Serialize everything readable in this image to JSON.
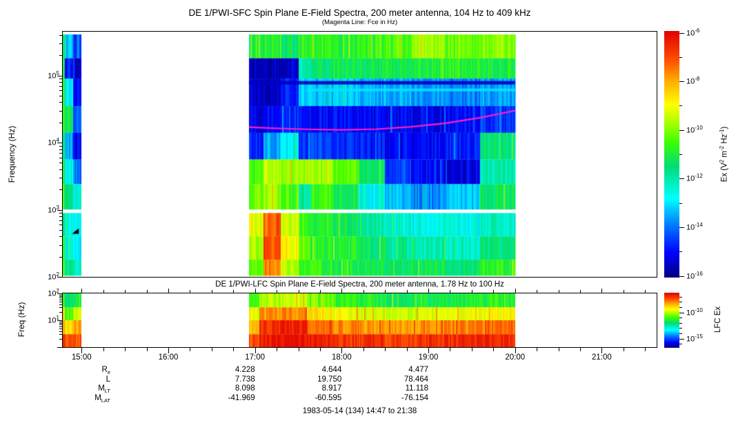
{
  "titles": {
    "sfc": "DE 1/PWI-SFC  Spin Plane E-Field Spectra, 200 meter antenna, 104 Hz to 409 kHz",
    "sfc_sub": "(Magenta Line: Fce in Hz)",
    "lfc": "DE 1/PWI-LFC  Spin Plane E-Field Spectra, 200 meter antenna, 1.78 Hz to 100 Hz"
  },
  "axes": {
    "x": {
      "start_hour": 14.783,
      "end_hour": 21.633,
      "major_ticks": [
        {
          "hour": 15,
          "label": "15:00"
        },
        {
          "hour": 16,
          "label": "16:00"
        },
        {
          "hour": 17,
          "label": "17:00"
        },
        {
          "hour": 18,
          "label": "18:00"
        },
        {
          "hour": 19,
          "label": "19:00"
        },
        {
          "hour": 20,
          "label": "20:00"
        },
        {
          "hour": 21,
          "label": "21:00"
        }
      ],
      "minor_step_hours": 0.25
    },
    "sfc_y": {
      "label": "Frequency (Hz)",
      "log_range_hz": [
        100,
        450000
      ],
      "major_ticks": [
        {
          "base": "10",
          "exp": "5",
          "hz": 100000
        },
        {
          "base": "10",
          "exp": "4",
          "hz": 10000
        },
        {
          "base": "10",
          "exp": "3",
          "hz": 1000
        },
        {
          "base": "10",
          "exp": "2",
          "hz": 100
        }
      ]
    },
    "lfc_y": {
      "label": "Freq (Hz)",
      "log_range_hz": [
        1,
        100
      ],
      "major_ticks": [
        {
          "base": "10",
          "exp": "2",
          "hz": 100
        },
        {
          "base": "10",
          "exp": "1",
          "hz": 10
        }
      ]
    }
  },
  "colorbars": {
    "sfc": {
      "label_parts": [
        {
          "t": "Ex (V"
        },
        {
          "s": "2"
        },
        {
          "t": " m"
        },
        {
          "s": "-2"
        },
        {
          "t": " Hz"
        },
        {
          "s": "-1"
        },
        {
          "t": ")"
        }
      ],
      "log_max": -6,
      "log_min": -16,
      "labeled_exps": [
        -6,
        -8,
        -10,
        -12,
        -14,
        -16
      ]
    },
    "lfc": {
      "label": "LFC Ex",
      "log_max": -6.5,
      "log_min": -16.5,
      "labeled_exps": [
        -10,
        -15
      ]
    }
  },
  "colors": {
    "fce_line": "#ff1ecc",
    "axis": "#000000",
    "background": "#ffffff",
    "colormap_stops": [
      [
        0.0,
        "#000082"
      ],
      [
        0.1,
        "#0000ff"
      ],
      [
        0.22,
        "#0082ff"
      ],
      [
        0.32,
        "#00ffff"
      ],
      [
        0.45,
        "#00dc78"
      ],
      [
        0.55,
        "#3cff00"
      ],
      [
        0.62,
        "#a0ff00"
      ],
      [
        0.7,
        "#ffff00"
      ],
      [
        0.8,
        "#ffaa00"
      ],
      [
        0.88,
        "#ff5000"
      ],
      [
        1.0,
        "#e10000"
      ]
    ]
  },
  "ephemeris": {
    "value_hours": [
      17,
      18,
      19
    ],
    "rows": [
      {
        "label": "R",
        "sub": "e",
        "values": [
          "4.228",
          "4.644",
          "4.477"
        ]
      },
      {
        "label": "L",
        "sub": "",
        "values": [
          "7.738",
          "19.750",
          "78.464"
        ]
      },
      {
        "label": "M",
        "sub": "LT",
        "values": [
          "8.098",
          "8.917",
          "11.118"
        ]
      },
      {
        "label": "M",
        "sub": "LAT",
        "values": [
          "-41.969",
          "-60.595",
          "-76.154"
        ]
      }
    ]
  },
  "footer": "1983-05-14 (134) 14:47 to 21:38",
  "chart_data": [
    {
      "type": "heatmap",
      "name": "sfc_spectrogram",
      "title": "DE 1/PWI-SFC  Spin Plane E-Field Spectra, 200 meter antenna, 104 Hz to 409 kHz",
      "ylabel": "Frequency (Hz)",
      "x_range_hours": [
        14.783,
        21.633
      ],
      "y_range_hz": [
        100,
        450000
      ],
      "value_units": "V^2 m^-2 Hz^-1",
      "value_log10_range": [
        -16,
        -6
      ],
      "row_bands_hz": [
        [
          409000,
          180000
        ],
        [
          180000,
          90000
        ],
        [
          90000,
          35000
        ],
        [
          35000,
          14000
        ],
        [
          14000,
          5600
        ],
        [
          5600,
          2400
        ],
        [
          2400,
          1010
        ],
        [
          890,
          400
        ],
        [
          400,
          180
        ],
        [
          180,
          104
        ]
      ],
      "columns": [
        {
          "t0": 14.783,
          "t1": 14.81,
          "cells": [
            -11.0,
            -11.5,
            -11.0,
            -10.8,
            -11.5,
            -11.0,
            -10.8,
            -11.5,
            -11.0,
            -10.5
          ]
        },
        {
          "t0": 14.81,
          "t1": 14.9,
          "cells": [
            -13.2,
            -14.8,
            -12.8,
            -11.2,
            -13.5,
            -12.8,
            -11.5,
            -12.8,
            -12.5,
            -11.8
          ]
        },
        {
          "t0": 14.9,
          "t1": 15.0,
          "cells": [
            -14.5,
            -15.3,
            -15.0,
            -14.0,
            -15.2,
            -14.0,
            -12.5,
            -13.0,
            -12.8,
            -12.3
          ]
        },
        {
          "t0": 16.93,
          "t1": 17.1,
          "cells": [
            -11.2,
            -15.6,
            -15.4,
            -15.2,
            -14.8,
            -10.6,
            -10.2,
            -9.2,
            -9.8,
            -10.4
          ]
        },
        {
          "t0": 17.1,
          "t1": 17.3,
          "cells": [
            -11.0,
            -15.6,
            -15.5,
            -15.0,
            -13.5,
            -9.6,
            -9.8,
            -7.4,
            -7.2,
            -7.6
          ]
        },
        {
          "t0": 17.3,
          "t1": 17.5,
          "cells": [
            -11.3,
            -15.4,
            -14.8,
            -14.6,
            -12.8,
            -9.8,
            -10.4,
            -9.4,
            -9.0,
            -9.6
          ]
        },
        {
          "t0": 17.5,
          "t1": 17.65,
          "cells": [
            -11.0,
            -12.0,
            -13.0,
            -14.8,
            -14.6,
            -10.0,
            -11.8,
            -10.6,
            -10.4,
            -10.6
          ]
        },
        {
          "t0": 17.65,
          "t1": 17.9,
          "cells": [
            -10.8,
            -11.4,
            -13.4,
            -15.0,
            -14.4,
            -9.8,
            -10.6,
            -11.0,
            -10.8,
            -10.8
          ]
        },
        {
          "t0": 17.9,
          "t1": 18.2,
          "cells": [
            -10.9,
            -11.2,
            -13.2,
            -15.0,
            -14.6,
            -10.4,
            -11.0,
            -11.4,
            -11.0,
            -11.0
          ]
        },
        {
          "t0": 18.2,
          "t1": 18.5,
          "cells": [
            -10.7,
            -11.3,
            -13.5,
            -15.0,
            -14.8,
            -11.4,
            -12.6,
            -12.0,
            -11.4,
            -11.2
          ]
        },
        {
          "t0": 18.5,
          "t1": 18.8,
          "cells": [
            -10.4,
            -11.1,
            -13.4,
            -15.1,
            -15.0,
            -14.4,
            -13.4,
            -12.4,
            -11.8,
            -11.4
          ]
        },
        {
          "t0": 18.8,
          "t1": 19.2,
          "cells": [
            -9.8,
            -11.0,
            -13.6,
            -15.2,
            -15.0,
            -15.0,
            -13.8,
            -12.6,
            -12.0,
            -11.3
          ]
        },
        {
          "t0": 19.2,
          "t1": 19.6,
          "cells": [
            -10.2,
            -10.9,
            -13.8,
            -15.0,
            -14.8,
            -15.2,
            -13.2,
            -12.6,
            -12.2,
            -11.5
          ]
        },
        {
          "t0": 19.6,
          "t1": 20.0,
          "cells": [
            -10.0,
            -11.0,
            -13.6,
            -14.6,
            -11.6,
            -12.0,
            -11.4,
            -12.2,
            -11.6,
            -10.8
          ]
        }
      ],
      "h_bands": [
        {
          "t0": 17.6,
          "t1": 20.0,
          "f_hz": 61000,
          "exp": -13.0,
          "thickness_px": 4
        },
        {
          "t0": 16.93,
          "t1": 20.0,
          "f_hz": 78000,
          "exp": -15.5,
          "thickness_px": 5
        }
      ],
      "fce_line_hz": [
        [
          16.93,
          17000
        ],
        [
          17.2,
          16400
        ],
        [
          17.6,
          15800
        ],
        [
          18.0,
          15500
        ],
        [
          18.4,
          15900
        ],
        [
          18.8,
          17200
        ],
        [
          19.2,
          19500
        ],
        [
          19.6,
          23500
        ],
        [
          20.0,
          30000
        ]
      ],
      "marker": {
        "t": 14.96,
        "f_hz": 480
      }
    },
    {
      "type": "heatmap",
      "name": "lfc_spectrogram",
      "title": "DE 1/PWI-LFC  Spin Plane E-Field Spectra, 200 meter antenna, 1.78 Hz to 100 Hz",
      "ylabel": "Freq (Hz)",
      "x_range_hours": [
        14.783,
        21.633
      ],
      "y_range_hz": [
        1,
        100
      ],
      "value_units": "V^2 m^-2 Hz^-1",
      "value_log10_range": [
        -16.5,
        -6.5
      ],
      "row_bands_hz": [
        [
          100,
          30
        ],
        [
          30,
          10
        ],
        [
          10,
          3
        ],
        [
          3,
          1
        ]
      ],
      "columns": [
        {
          "t0": 14.783,
          "t1": 14.81,
          "cells": [
            -11.0,
            -9.2,
            -8.2,
            -7.4
          ]
        },
        {
          "t0": 14.81,
          "t1": 14.9,
          "cells": [
            -12.0,
            -10.8,
            -9.0,
            -7.8
          ]
        },
        {
          "t0": 14.9,
          "t1": 15.0,
          "cells": [
            -11.6,
            -10.0,
            -8.4,
            -7.6
          ]
        },
        {
          "t0": 16.93,
          "t1": 17.05,
          "cells": [
            -11.2,
            -9.6,
            -8.6,
            -7.8
          ]
        },
        {
          "t0": 17.05,
          "t1": 17.3,
          "cells": [
            -10.2,
            -8.4,
            -7.2,
            -6.8
          ]
        },
        {
          "t0": 17.3,
          "t1": 17.6,
          "cells": [
            -10.0,
            -8.2,
            -7.0,
            -6.8
          ]
        },
        {
          "t0": 17.6,
          "t1": 17.9,
          "cells": [
            -10.8,
            -9.2,
            -7.8,
            -7.0
          ]
        },
        {
          "t0": 17.9,
          "t1": 18.2,
          "cells": [
            -11.2,
            -9.6,
            -8.2,
            -7.2
          ]
        },
        {
          "t0": 18.2,
          "t1": 18.5,
          "cells": [
            -11.5,
            -9.8,
            -8.4,
            -7.2
          ]
        },
        {
          "t0": 18.5,
          "t1": 18.9,
          "cells": [
            -11.7,
            -10.0,
            -8.4,
            -7.4
          ]
        },
        {
          "t0": 18.9,
          "t1": 19.3,
          "cells": [
            -11.6,
            -9.8,
            -8.2,
            -7.2
          ]
        },
        {
          "t0": 19.3,
          "t1": 19.7,
          "cells": [
            -11.5,
            -9.6,
            -8.2,
            -7.1
          ]
        },
        {
          "t0": 19.7,
          "t1": 20.0,
          "cells": [
            -11.3,
            -9.4,
            -8.0,
            -7.0
          ]
        }
      ]
    }
  ]
}
